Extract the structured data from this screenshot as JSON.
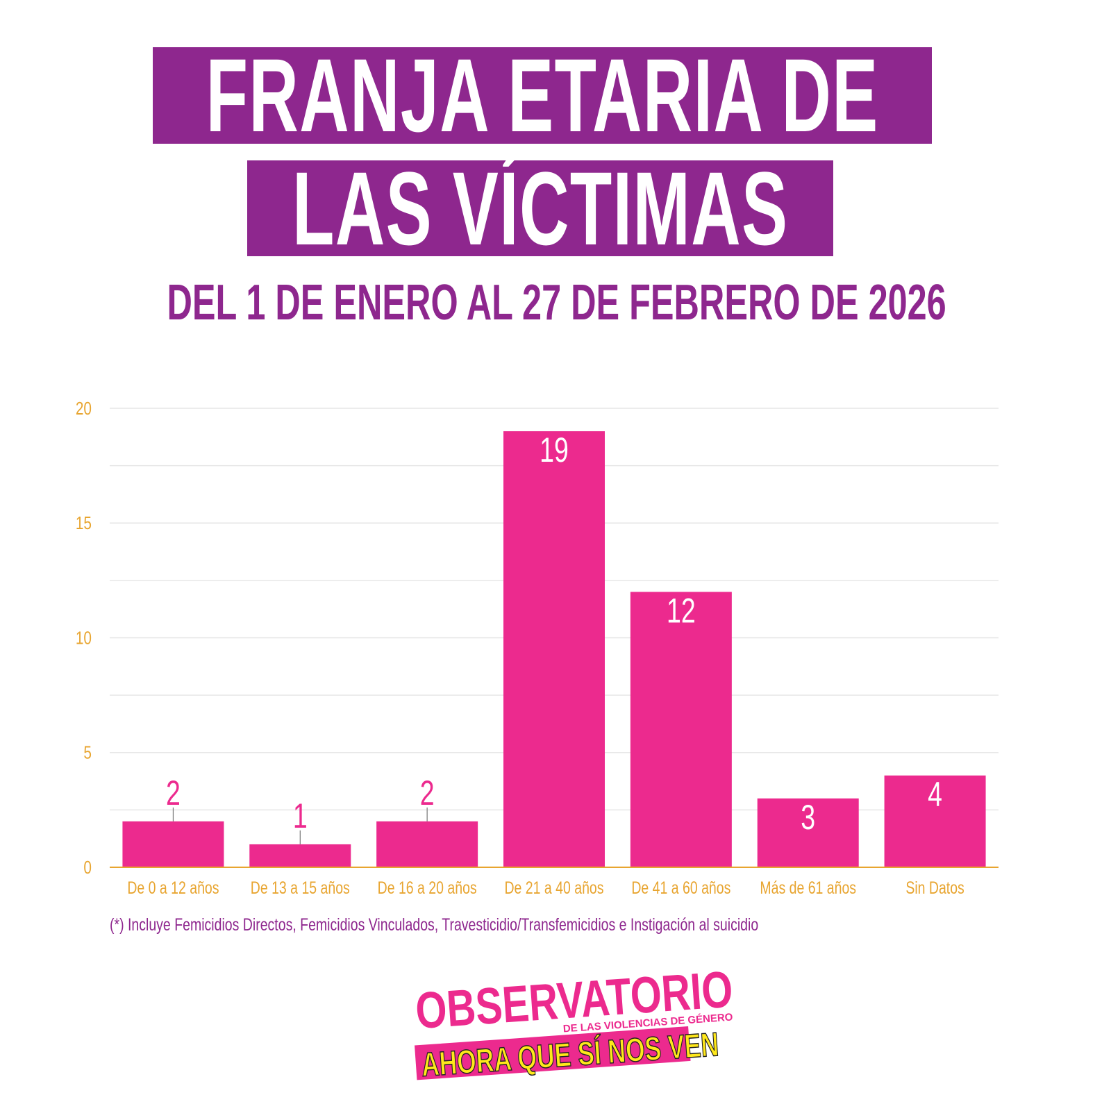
{
  "title_line1": "FRANJA ETARIA DE",
  "title_line2": "LAS VÍCTIMAS",
  "subtitle": "DEL 1 DE ENERO AL 27 DE FEBRERO DE 2026",
  "footnote": "(*) Incluye Femicidios Directos, Femicidios Vinculados,  Travesticidio/Transfemicidios e Instigación al suicidio",
  "logo": {
    "line1": "OBSERVATORIO",
    "line2": "DE LAS VIOLENCIAS DE GÉNERO",
    "line3": "AHORA QUE SÍ NOS VEN"
  },
  "colors": {
    "bar": "#ec2a8e",
    "title_bg": "#8e278e",
    "axis_text": "#e8a530",
    "grid": "#e6e6e6"
  },
  "chart_data": {
    "type": "bar",
    "categories": [
      "De 0 a 12 años",
      "De 13 a 15 años",
      "De 16 a 20 años",
      "De 21 a 40 años",
      "De 41 a 60 años",
      "Más de 61 años",
      "Sin Datos"
    ],
    "values": [
      2,
      1,
      2,
      19,
      12,
      3,
      4
    ],
    "ylim": [
      0,
      20
    ],
    "yticks": [
      0,
      5,
      10,
      15,
      20
    ],
    "grid": true,
    "xlabel": "",
    "ylabel": ""
  }
}
